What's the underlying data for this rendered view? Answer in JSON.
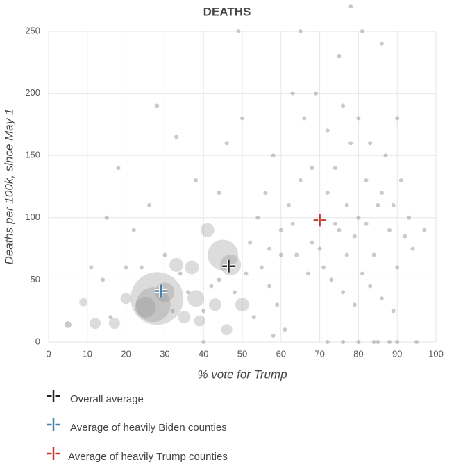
{
  "chart_data": {
    "type": "scatter",
    "title": "DEATHS",
    "x_label": "% vote for Trump",
    "y_label": "Deaths per 100k, since May 1",
    "xlim": [
      0,
      100
    ],
    "xticks": [
      0,
      10,
      20,
      30,
      40,
      50,
      60,
      70,
      80,
      90,
      100
    ],
    "ylim": [
      0,
      250
    ],
    "yticks": [
      0,
      50,
      100,
      150,
      200,
      250
    ],
    "grid": true,
    "color": "#8a8a8a",
    "points": [
      [
        28,
        35,
        38
      ],
      [
        27,
        30,
        25
      ],
      [
        25,
        28,
        15
      ],
      [
        45,
        70,
        22
      ],
      [
        47,
        62,
        15
      ],
      [
        41,
        90,
        10
      ],
      [
        37,
        60,
        10
      ],
      [
        33,
        62,
        10
      ],
      [
        38,
        35,
        12
      ],
      [
        12,
        15,
        8
      ],
      [
        9,
        32,
        6
      ],
      [
        5,
        14,
        5
      ],
      [
        17,
        15,
        8
      ],
      [
        30,
        40,
        14
      ],
      [
        46,
        10,
        8
      ],
      [
        50,
        30,
        10
      ],
      [
        35,
        20,
        9
      ],
      [
        43,
        30,
        9
      ],
      [
        39,
        17,
        8
      ],
      [
        20,
        35,
        8
      ],
      [
        60,
        90,
        3
      ],
      [
        62,
        110,
        3
      ],
      [
        65,
        130,
        3
      ],
      [
        68,
        80,
        3
      ],
      [
        70,
        100,
        3
      ],
      [
        72,
        120,
        3
      ],
      [
        74,
        140,
        3
      ],
      [
        75,
        90,
        3
      ],
      [
        77,
        110,
        3
      ],
      [
        78,
        160,
        3
      ],
      [
        80,
        100,
        3
      ],
      [
        82,
        130,
        3
      ],
      [
        84,
        70,
        3
      ],
      [
        85,
        110,
        3
      ],
      [
        87,
        150,
        3
      ],
      [
        88,
        90,
        3
      ],
      [
        90,
        60,
        3
      ],
      [
        71,
        60,
        3
      ],
      [
        73,
        50,
        3
      ],
      [
        76,
        40,
        3
      ],
      [
        79,
        30,
        3
      ],
      [
        81,
        55,
        3
      ],
      [
        83,
        45,
        3
      ],
      [
        86,
        35,
        3
      ],
      [
        89,
        25,
        3
      ],
      [
        92,
        85,
        3
      ],
      [
        94,
        75,
        3
      ],
      [
        66,
        180,
        3
      ],
      [
        69,
        200,
        3
      ],
      [
        75,
        230,
        3
      ],
      [
        81,
        250,
        3
      ],
      [
        78,
        270,
        3
      ],
      [
        86,
        240,
        3
      ],
      [
        90,
        180,
        3
      ],
      [
        55,
        60,
        3
      ],
      [
        57,
        45,
        3
      ],
      [
        59,
        30,
        3
      ],
      [
        52,
        80,
        3
      ],
      [
        54,
        100,
        3
      ],
      [
        56,
        120,
        3
      ],
      [
        58,
        150,
        3
      ],
      [
        53,
        20,
        3
      ],
      [
        51,
        55,
        3
      ],
      [
        48,
        40,
        3
      ],
      [
        44,
        50,
        3
      ],
      [
        42,
        45,
        3
      ],
      [
        40,
        25,
        3
      ],
      [
        36,
        40,
        3
      ],
      [
        34,
        55,
        3
      ],
      [
        32,
        25,
        3
      ],
      [
        30,
        70,
        3
      ],
      [
        26,
        110,
        3
      ],
      [
        24,
        60,
        3
      ],
      [
        22,
        90,
        3
      ],
      [
        20,
        60,
        3
      ],
      [
        18,
        140,
        3
      ],
      [
        15,
        100,
        3
      ],
      [
        14,
        50,
        3
      ],
      [
        11,
        60,
        3
      ],
      [
        16,
        20,
        3
      ],
      [
        63,
        200,
        3
      ],
      [
        61,
        10,
        3
      ],
      [
        64,
        70,
        3
      ],
      [
        67,
        55,
        3
      ],
      [
        72,
        0,
        3
      ],
      [
        76,
        0,
        3
      ],
      [
        80,
        0,
        3
      ],
      [
        84,
        0,
        3
      ],
      [
        88,
        0,
        3
      ],
      [
        85,
        0,
        3
      ],
      [
        90,
        0,
        3
      ],
      [
        95,
        0,
        3
      ],
      [
        40,
        0,
        3
      ],
      [
        46,
        160,
        3
      ],
      [
        50,
        180,
        3
      ],
      [
        44,
        120,
        3
      ],
      [
        38,
        130,
        3
      ],
      [
        28,
        190,
        3
      ],
      [
        33,
        165,
        3
      ],
      [
        49,
        250,
        3
      ],
      [
        65,
        250,
        3
      ],
      [
        70,
        75,
        3
      ],
      [
        74,
        95,
        3
      ],
      [
        77,
        70,
        3
      ],
      [
        79,
        85,
        3
      ],
      [
        82,
        95,
        3
      ],
      [
        86,
        120,
        3
      ],
      [
        68,
        140,
        3
      ],
      [
        63,
        95,
        3
      ],
      [
        60,
        70,
        3
      ],
      [
        57,
        75,
        3
      ],
      [
        80,
        180,
        3
      ],
      [
        83,
        160,
        3
      ],
      [
        76,
        190,
        3
      ],
      [
        72,
        170,
        3
      ],
      [
        89,
        110,
        3
      ],
      [
        91,
        130,
        3
      ],
      [
        93,
        100,
        3
      ],
      [
        97,
        90,
        3
      ],
      [
        58,
        5,
        3
      ]
    ],
    "averages": [
      {
        "name": "Overall average",
        "color": "#222222",
        "x": 46.5,
        "y": 61
      },
      {
        "name": "Average of heavily Biden counties",
        "color": "#4a7fa5",
        "x": 29,
        "y": 41
      },
      {
        "name": "Average of heavily Trump counties",
        "color": "#c0392b",
        "x": 70,
        "y": 98
      }
    ]
  }
}
